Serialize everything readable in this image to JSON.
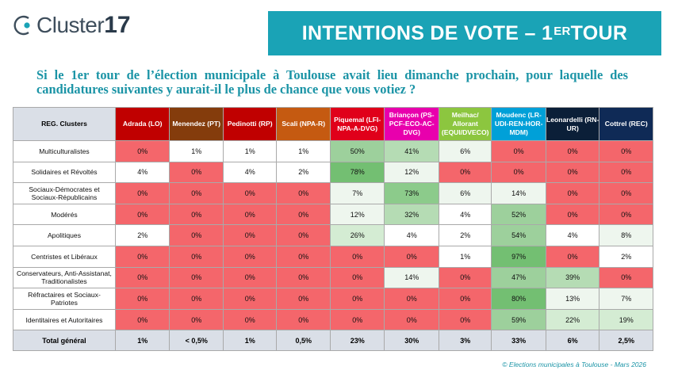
{
  "logo": {
    "name": "Cluster",
    "number": "17"
  },
  "banner": {
    "title": "INTENTIONS DE VOTE – 1",
    "sup": "ER",
    "suffix": " TOUR"
  },
  "question": "Si le 1er tour de l’élection municipale à Toulouse avait lieu dimanche prochain, pour laquelle des candidatures suivantes y aurait-il le plus de chance que vous votiez ?",
  "table": {
    "corner": "REG. Clusters",
    "candidates": [
      {
        "label": "Adrada (LO)",
        "color": "#c00000"
      },
      {
        "label": "Menendez (PT)",
        "color": "#843c0c"
      },
      {
        "label": "Pedinotti (RP)",
        "color": "#c00000"
      },
      {
        "label": "Scali (NPA-R)",
        "color": "#c55a11"
      },
      {
        "label": "Piquemal (LFI-NPA-A-DVG)",
        "color": "#e0001a"
      },
      {
        "label": "Briançon (PS-PCF-ECO-AC-DVG)",
        "color": "#e800ad"
      },
      {
        "label": "Meilhac/ Allorant (EQUI/DVECO)",
        "color": "#8cc63f"
      },
      {
        "label": "Moudenc (LR-UDI-REN-HOR-MDM)",
        "color": "#00a0d8"
      },
      {
        "label": "Leonardelli (RN-UR)",
        "color": "#0b1f38"
      },
      {
        "label": "Cottrel (REC)",
        "color": "#0f2a56"
      }
    ],
    "rows": [
      {
        "label": "Multiculturalistes",
        "values": [
          "0%",
          "1%",
          "1%",
          "1%",
          "50%",
          "41%",
          "6%",
          "0%",
          "0%",
          "0%"
        ]
      },
      {
        "label": "Solidaires et Révoltés",
        "values": [
          "4%",
          "0%",
          "4%",
          "2%",
          "78%",
          "12%",
          "0%",
          "0%",
          "0%",
          "0%"
        ]
      },
      {
        "label": "Sociaux-Démocrates et Sociaux-Républicains",
        "values": [
          "0%",
          "0%",
          "0%",
          "0%",
          "7%",
          "73%",
          "6%",
          "14%",
          "0%",
          "0%"
        ]
      },
      {
        "label": "Modérés",
        "values": [
          "0%",
          "0%",
          "0%",
          "0%",
          "12%",
          "32%",
          "4%",
          "52%",
          "0%",
          "0%"
        ]
      },
      {
        "label": "Apolitiques",
        "values": [
          "2%",
          "0%",
          "0%",
          "0%",
          "26%",
          "4%",
          "2%",
          "54%",
          "4%",
          "8%"
        ]
      },
      {
        "label": "Centristes et Libéraux",
        "values": [
          "0%",
          "0%",
          "0%",
          "0%",
          "0%",
          "0%",
          "1%",
          "97%",
          "0%",
          "2%"
        ]
      },
      {
        "label": "Conservateurs, Anti-Assistanat, Traditionalistes",
        "values": [
          "0%",
          "0%",
          "0%",
          "0%",
          "0%",
          "14%",
          "0%",
          "47%",
          "39%",
          "0%"
        ]
      },
      {
        "label": "Réfractaires et Sociaux-Patriotes",
        "values": [
          "0%",
          "0%",
          "0%",
          "0%",
          "0%",
          "0%",
          "0%",
          "80%",
          "13%",
          "7%"
        ]
      },
      {
        "label": "Identitaires et Autoritaires",
        "values": [
          "0%",
          "0%",
          "0%",
          "0%",
          "0%",
          "0%",
          "0%",
          "59%",
          "22%",
          "19%"
        ]
      }
    ],
    "total": {
      "label": "Total général",
      "values": [
        "1%",
        "< 0,5%",
        "1%",
        "0,5%",
        "23%",
        "30%",
        "3%",
        "33%",
        "6%",
        "2,5%"
      ]
    }
  },
  "footer": "© Elections municipales à Toulouse - Mars 2026"
}
